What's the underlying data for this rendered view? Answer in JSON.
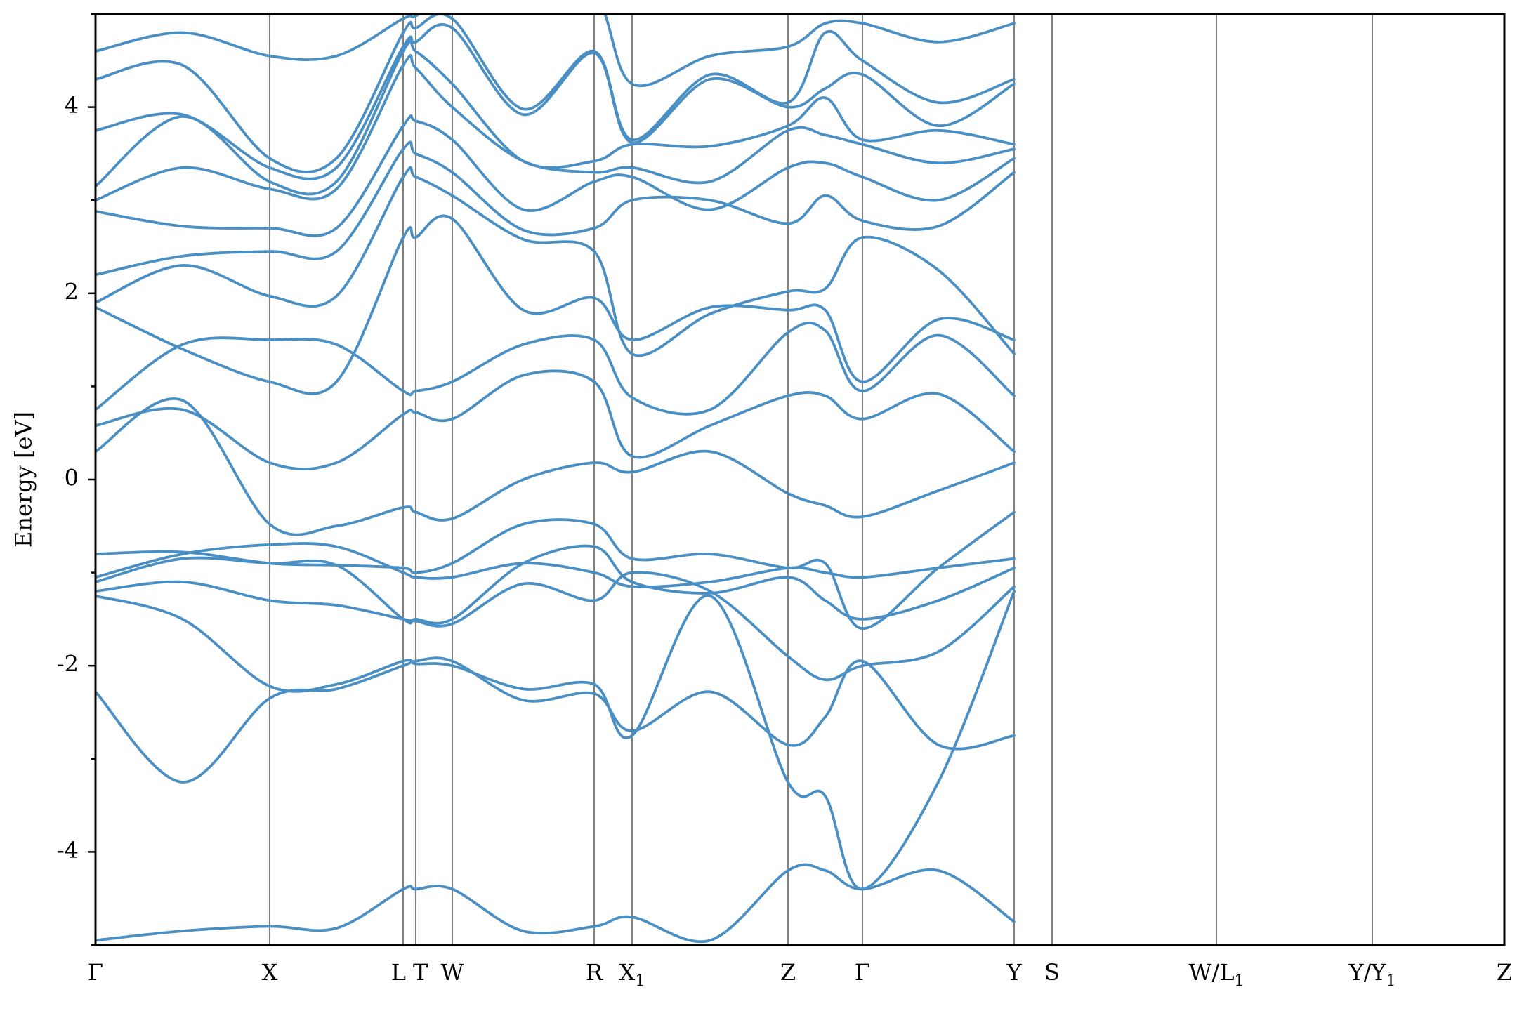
{
  "chart_data": {
    "type": "line",
    "title": "",
    "xlabel": "",
    "ylabel": "Energy [eV]",
    "ylim": [
      -5,
      5
    ],
    "yticks": [
      -4,
      -2,
      0,
      2,
      4
    ],
    "grid": false,
    "colors": {
      "band": "#4a8fc4",
      "kline": "#808080"
    },
    "kpoints": [
      {
        "label": "Γ",
        "sub": "",
        "x": 0.0
      },
      {
        "label": "X",
        "sub": "",
        "x": 1.24
      },
      {
        "label": "L",
        "sub": "",
        "x": 2.19
      },
      {
        "label": "T",
        "sub": "",
        "x": 2.28
      },
      {
        "label": "W",
        "sub": "",
        "x": 2.54
      },
      {
        "label": "R",
        "sub": "",
        "x": 3.55
      },
      {
        "label": "X",
        "sub": "1",
        "x": 3.82
      },
      {
        "label": "Z",
        "sub": "",
        "x": 4.93
      },
      {
        "label": "Γ",
        "sub": "",
        "x": 5.46
      },
      {
        "label": "Y",
        "sub": "",
        "x": 6.54
      },
      {
        "label": "S",
        "sub": "",
        "x": 6.81
      },
      {
        "label": "W/L",
        "sub": "1",
        "x": 7.98
      },
      {
        "label": "Y/Y",
        "sub": "1",
        "x": 9.09
      },
      {
        "label": "Z",
        "sub": "",
        "x": 10.03
      }
    ],
    "series": [
      {
        "energies": [
          -4.95,
          -4.85,
          -4.8,
          -4.82,
          -4.4,
          -4.4,
          -4.4,
          -4.85,
          -4.8,
          -4.7,
          -4.95,
          -4.2,
          -4.2,
          -4.4,
          -4.2,
          -4.75
        ]
      },
      {
        "energies": [
          -2.28,
          -3.25,
          -2.35,
          -2.25,
          -2.0,
          -1.95,
          -1.95,
          -2.37,
          -2.3,
          -2.7,
          -2.28,
          -2.85,
          -2.55,
          -1.95,
          -2.85,
          -2.75
        ]
      },
      {
        "energies": [
          -1.25,
          -1.5,
          -2.22,
          -2.2,
          -1.95,
          -1.98,
          -2.0,
          -2.25,
          -2.2,
          -2.75,
          -1.25,
          -3.25,
          -3.4,
          -4.4,
          -3.25,
          -1.2
        ]
      },
      {
        "energies": [
          -1.2,
          -1.1,
          -1.3,
          -1.35,
          -1.5,
          -1.52,
          -1.55,
          -1.12,
          -1.3,
          -1.0,
          -1.2,
          -1.9,
          -2.15,
          -2.0,
          -1.85,
          -1.15
        ]
      },
      {
        "energies": [
          -1.1,
          -0.85,
          -0.9,
          -0.92,
          -1.5,
          -1.5,
          -1.5,
          -0.9,
          -0.72,
          -1.1,
          -1.22,
          -1.05,
          -1.3,
          -1.5,
          -1.3,
          -0.95
        ]
      },
      {
        "energies": [
          -1.05,
          -0.8,
          -0.7,
          -0.72,
          -1.0,
          -1.05,
          -1.05,
          -0.9,
          -1.0,
          -1.15,
          -1.1,
          -0.95,
          -1.0,
          -1.05,
          -0.95,
          -0.85
        ]
      },
      {
        "energies": [
          -0.8,
          -0.78,
          -0.9,
          -0.92,
          -0.95,
          -1.0,
          -0.9,
          -0.48,
          -0.48,
          -0.85,
          -0.8,
          -0.95,
          -0.9,
          -1.6,
          -0.95,
          -0.35
        ]
      },
      {
        "energies": [
          0.3,
          0.85,
          -0.48,
          -0.5,
          -0.3,
          -0.35,
          -0.42,
          0.0,
          0.18,
          0.08,
          0.3,
          -0.15,
          -0.28,
          -0.4,
          -0.12,
          0.18
        ]
      },
      {
        "energies": [
          0.58,
          0.75,
          0.18,
          0.18,
          0.7,
          0.72,
          0.65,
          1.12,
          1.05,
          0.25,
          0.58,
          0.9,
          0.9,
          0.65,
          0.92,
          0.3
        ]
      },
      {
        "energies": [
          0.75,
          1.45,
          1.5,
          1.45,
          0.95,
          0.95,
          1.05,
          1.45,
          1.5,
          0.88,
          0.75,
          1.58,
          1.6,
          0.95,
          1.55,
          0.9
        ]
      },
      {
        "energies": [
          1.85,
          1.4,
          1.05,
          1.05,
          2.6,
          2.6,
          2.8,
          1.82,
          1.95,
          1.5,
          1.85,
          1.82,
          1.82,
          1.05,
          1.72,
          1.5
        ]
      },
      {
        "energies": [
          1.9,
          2.3,
          1.97,
          1.97,
          3.25,
          3.25,
          3.05,
          2.58,
          2.45,
          1.35,
          1.78,
          2.02,
          2.05,
          2.6,
          2.25,
          1.35
        ]
      },
      {
        "energies": [
          2.2,
          2.4,
          2.45,
          2.45,
          3.55,
          3.5,
          3.3,
          2.68,
          2.7,
          3.0,
          3.0,
          2.75,
          3.05,
          2.78,
          2.72,
          3.3
        ]
      },
      {
        "energies": [
          2.88,
          2.72,
          2.7,
          2.7,
          3.8,
          3.85,
          3.65,
          2.9,
          3.2,
          3.25,
          2.9,
          3.35,
          3.4,
          3.25,
          3.0,
          3.45
        ]
      },
      {
        "energies": [
          3.0,
          3.35,
          3.12,
          3.12,
          4.45,
          4.42,
          4.0,
          3.42,
          3.3,
          3.35,
          3.2,
          3.75,
          3.7,
          3.6,
          3.4,
          3.55
        ]
      },
      {
        "energies": [
          3.15,
          3.9,
          3.2,
          3.2,
          4.6,
          4.6,
          4.25,
          3.42,
          3.42,
          3.6,
          3.58,
          3.8,
          4.1,
          3.65,
          3.75,
          3.6
        ]
      },
      {
        "energies": [
          3.75,
          3.92,
          3.35,
          3.35,
          4.65,
          4.7,
          4.85,
          3.92,
          4.58,
          3.62,
          4.3,
          4.0,
          4.2,
          4.35,
          3.8,
          4.25
        ]
      },
      {
        "energies": [
          4.3,
          4.45,
          3.45,
          3.45,
          4.8,
          4.85,
          4.95,
          3.98,
          4.6,
          3.65,
          4.35,
          4.05,
          4.8,
          4.5,
          4.05,
          4.3
        ]
      },
      {
        "energies": [
          4.6,
          4.8,
          4.55,
          4.55,
          4.95,
          4.98,
          5.2,
          5.2,
          5.2,
          4.25,
          4.55,
          4.65,
          4.9,
          4.9,
          4.7,
          4.9
        ]
      }
    ]
  }
}
